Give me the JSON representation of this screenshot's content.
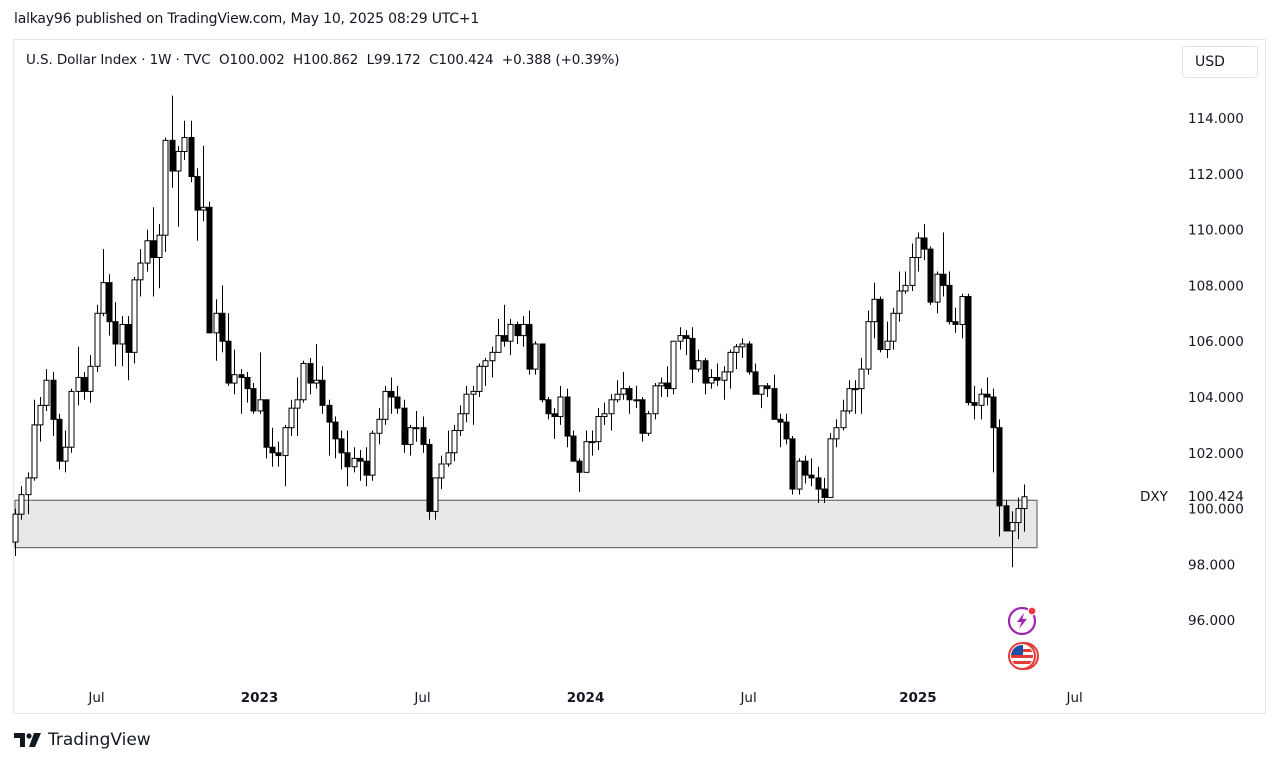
{
  "caption": "lalkay96 published on TradingView.com, May 10, 2025 08:29 UTC+1",
  "legend": {
    "symbol": "U.S. Dollar Index · 1W · TVC",
    "open": "O100.002",
    "high": "H100.862",
    "low": "L99.172",
    "close": "C100.424",
    "change": "+0.388 (+0.39%)"
  },
  "currency_button": "USD",
  "footer_brand": "TradingView",
  "icons": [
    "lightning-event-icon",
    "us-flag-icon",
    "tradingview-logo-icon"
  ],
  "colors": {
    "up_body": "#ffffff",
    "down_body": "#000000",
    "wick": "#000000",
    "zone_fill": "#e8e8ea",
    "zone_border": "#555555",
    "event_icon": "#9c27b0",
    "flag_icon": "#e53935"
  },
  "chart_data": {
    "type": "candlestick",
    "interval": "1W",
    "symbol_label": "DXY",
    "last_price_label": "100.424",
    "hidden_tick_label": "100.000",
    "ylim": [
      93.2,
      116.8
    ],
    "y_ticks": [
      "114.000",
      "112.000",
      "110.000",
      "108.000",
      "106.000",
      "104.000",
      "102.000",
      "98.000",
      "96.000"
    ],
    "x_ticks": [
      {
        "label": "Jul",
        "date": "2022-07-04",
        "bold": false
      },
      {
        "label": "2023",
        "date": "2023-01-02",
        "bold": true
      },
      {
        "label": "Jul",
        "date": "2023-07-03",
        "bold": false
      },
      {
        "label": "2024",
        "date": "2024-01-01",
        "bold": true
      },
      {
        "label": "Jul",
        "date": "2024-07-01",
        "bold": false
      },
      {
        "label": "2025",
        "date": "2025-01-06",
        "bold": true
      },
      {
        "label": "Jul",
        "date": "2025-06-30",
        "bold": false
      }
    ],
    "zone": {
      "top": 100.3,
      "bottom": 98.6,
      "from": "2022-04-04",
      "to": "2025-05-19"
    },
    "grid": false,
    "candles_columns": [
      "date",
      "open",
      "high",
      "low",
      "close"
    ],
    "candles": [
      [
        "2022-04-04",
        98.8,
        100.0,
        98.3,
        99.8
      ],
      [
        "2022-04-11",
        99.8,
        100.8,
        99.6,
        100.5
      ],
      [
        "2022-04-18",
        100.5,
        101.3,
        99.8,
        101.1
      ],
      [
        "2022-04-25",
        101.1,
        103.9,
        101.0,
        103.0
      ],
      [
        "2022-05-02",
        103.0,
        104.0,
        102.4,
        103.7
      ],
      [
        "2022-05-09",
        103.7,
        105.0,
        103.5,
        104.6
      ],
      [
        "2022-05-16",
        104.6,
        104.9,
        102.6,
        103.2
      ],
      [
        "2022-05-23",
        103.2,
        103.4,
        101.4,
        101.7
      ],
      [
        "2022-05-30",
        101.7,
        102.8,
        101.3,
        102.2
      ],
      [
        "2022-06-06",
        102.2,
        104.3,
        102.0,
        104.2
      ],
      [
        "2022-06-13",
        104.2,
        105.8,
        103.7,
        104.7
      ],
      [
        "2022-06-20",
        104.7,
        104.9,
        103.9,
        104.2
      ],
      [
        "2022-06-27",
        104.2,
        105.5,
        103.8,
        105.1
      ],
      [
        "2022-07-04",
        105.1,
        107.3,
        104.9,
        107.0
      ],
      [
        "2022-07-11",
        107.0,
        109.3,
        106.9,
        108.1
      ],
      [
        "2022-07-18",
        108.1,
        108.4,
        106.2,
        106.7
      ],
      [
        "2022-07-25",
        106.7,
        107.4,
        105.1,
        105.9
      ],
      [
        "2022-08-01",
        105.9,
        106.9,
        105.1,
        106.6
      ],
      [
        "2022-08-08",
        106.6,
        106.9,
        104.6,
        105.6
      ],
      [
        "2022-08-15",
        105.6,
        108.3,
        105.2,
        108.2
      ],
      [
        "2022-08-22",
        108.2,
        109.3,
        107.6,
        108.8
      ],
      [
        "2022-08-29",
        108.8,
        110.0,
        108.5,
        109.6
      ],
      [
        "2022-09-05",
        109.6,
        110.8,
        107.6,
        109.0
      ],
      [
        "2022-09-12",
        109.0,
        110.2,
        107.9,
        109.8
      ],
      [
        "2022-09-19",
        109.8,
        113.3,
        109.2,
        113.2
      ],
      [
        "2022-09-26",
        113.2,
        114.8,
        111.5,
        112.1
      ],
      [
        "2022-10-03",
        112.1,
        113.0,
        110.1,
        112.8
      ],
      [
        "2022-10-10",
        112.8,
        113.9,
        112.5,
        113.3
      ],
      [
        "2022-10-17",
        113.3,
        113.9,
        111.7,
        111.9
      ],
      [
        "2022-10-24",
        111.9,
        112.2,
        109.6,
        110.7
      ],
      [
        "2022-10-31",
        110.7,
        113.0,
        110.3,
        110.8
      ],
      [
        "2022-11-07",
        110.8,
        111.0,
        106.3,
        106.3
      ],
      [
        "2022-11-14",
        106.3,
        107.5,
        105.3,
        107.0
      ],
      [
        "2022-11-21",
        107.0,
        108.0,
        105.6,
        106.0
      ],
      [
        "2022-11-28",
        106.0,
        107.0,
        104.4,
        104.5
      ],
      [
        "2022-12-05",
        104.5,
        105.7,
        104.1,
        104.8
      ],
      [
        "2022-12-12",
        104.8,
        105.0,
        103.4,
        104.7
      ],
      [
        "2022-12-19",
        104.7,
        104.9,
        103.8,
        104.3
      ],
      [
        "2022-12-26",
        104.3,
        104.5,
        103.4,
        103.5
      ],
      [
        "2023-01-02",
        103.5,
        105.6,
        103.4,
        103.9
      ],
      [
        "2023-01-09",
        103.9,
        103.9,
        101.8,
        102.2
      ],
      [
        "2023-01-16",
        102.2,
        102.9,
        101.5,
        102.0
      ],
      [
        "2023-01-23",
        102.0,
        102.4,
        101.5,
        101.9
      ],
      [
        "2023-01-30",
        101.9,
        103.0,
        100.8,
        102.9
      ],
      [
        "2023-02-06",
        102.9,
        103.9,
        102.6,
        103.6
      ],
      [
        "2023-02-13",
        103.6,
        104.7,
        102.6,
        103.9
      ],
      [
        "2023-02-20",
        103.9,
        105.3,
        103.8,
        105.2
      ],
      [
        "2023-02-27",
        105.2,
        105.4,
        104.1,
        104.5
      ],
      [
        "2023-03-06",
        104.5,
        105.9,
        104.3,
        104.6
      ],
      [
        "2023-03-13",
        104.6,
        105.1,
        103.4,
        103.7
      ],
      [
        "2023-03-20",
        103.7,
        103.9,
        101.9,
        103.1
      ],
      [
        "2023-03-27",
        103.1,
        103.3,
        101.8,
        102.5
      ],
      [
        "2023-04-03",
        102.5,
        102.8,
        101.4,
        102.0
      ],
      [
        "2023-04-10",
        102.0,
        102.8,
        100.8,
        101.5
      ],
      [
        "2023-04-17",
        101.5,
        102.2,
        101.3,
        101.8
      ],
      [
        "2023-04-24",
        101.8,
        102.1,
        101.0,
        101.7
      ],
      [
        "2023-05-01",
        101.7,
        102.2,
        100.8,
        101.2
      ],
      [
        "2023-05-08",
        101.2,
        102.8,
        101.0,
        102.7
      ],
      [
        "2023-05-15",
        102.7,
        103.6,
        102.3,
        103.2
      ],
      [
        "2023-05-22",
        103.2,
        104.4,
        103.0,
        104.2
      ],
      [
        "2023-05-29",
        104.2,
        104.7,
        103.4,
        104.0
      ],
      [
        "2023-06-05",
        104.0,
        104.4,
        103.4,
        103.6
      ],
      [
        "2023-06-12",
        103.6,
        103.9,
        102.0,
        102.3
      ],
      [
        "2023-06-19",
        102.3,
        103.0,
        101.9,
        102.9
      ],
      [
        "2023-06-26",
        102.9,
        103.5,
        102.4,
        102.9
      ],
      [
        "2023-07-03",
        102.9,
        103.3,
        102.0,
        102.3
      ],
      [
        "2023-07-10",
        102.3,
        102.5,
        99.6,
        99.9
      ],
      [
        "2023-07-17",
        99.9,
        101.1,
        99.6,
        101.1
      ],
      [
        "2023-07-24",
        101.1,
        101.9,
        100.7,
        101.6
      ],
      [
        "2023-07-31",
        101.6,
        102.8,
        101.5,
        102.0
      ],
      [
        "2023-08-07",
        102.0,
        103.0,
        101.7,
        102.8
      ],
      [
        "2023-08-14",
        102.8,
        103.7,
        102.6,
        103.4
      ],
      [
        "2023-08-21",
        103.4,
        104.4,
        103.1,
        104.1
      ],
      [
        "2023-08-28",
        104.1,
        104.4,
        103.0,
        104.2
      ],
      [
        "2023-09-04",
        104.2,
        105.2,
        104.0,
        105.1
      ],
      [
        "2023-09-11",
        105.1,
        105.4,
        104.4,
        105.3
      ],
      [
        "2023-09-18",
        105.3,
        105.8,
        104.7,
        105.6
      ],
      [
        "2023-09-25",
        105.6,
        106.8,
        105.6,
        106.2
      ],
      [
        "2023-10-02",
        106.2,
        107.3,
        105.8,
        106.0
      ],
      [
        "2023-10-09",
        106.0,
        106.8,
        105.5,
        106.6
      ],
      [
        "2023-10-16",
        106.6,
        106.7,
        105.9,
        106.2
      ],
      [
        "2023-10-23",
        106.2,
        106.9,
        105.8,
        106.6
      ],
      [
        "2023-10-30",
        106.6,
        107.1,
        104.8,
        105.0
      ],
      [
        "2023-11-06",
        105.0,
        106.0,
        104.8,
        105.9
      ],
      [
        "2023-11-13",
        105.9,
        105.9,
        103.8,
        103.9
      ],
      [
        "2023-11-20",
        103.9,
        104.0,
        103.2,
        103.4
      ],
      [
        "2023-11-27",
        103.4,
        103.6,
        102.5,
        103.3
      ],
      [
        "2023-12-04",
        103.3,
        104.4,
        103.0,
        104.0
      ],
      [
        "2023-12-11",
        104.0,
        104.3,
        102.2,
        102.6
      ],
      [
        "2023-12-18",
        102.6,
        102.8,
        101.7,
        101.7
      ],
      [
        "2023-12-25",
        101.7,
        101.8,
        100.6,
        101.3
      ],
      [
        "2024-01-01",
        101.3,
        102.8,
        101.3,
        102.4
      ],
      [
        "2024-01-08",
        102.4,
        102.8,
        101.9,
        102.4
      ],
      [
        "2024-01-15",
        102.4,
        103.6,
        102.1,
        103.3
      ],
      [
        "2024-01-22",
        103.3,
        103.8,
        103.0,
        103.4
      ],
      [
        "2024-01-29",
        103.4,
        104.1,
        102.8,
        103.9
      ],
      [
        "2024-02-05",
        103.9,
        104.6,
        103.8,
        104.1
      ],
      [
        "2024-02-12",
        104.1,
        104.9,
        103.9,
        104.3
      ],
      [
        "2024-02-19",
        104.3,
        104.4,
        103.4,
        103.9
      ],
      [
        "2024-02-26",
        103.9,
        104.4,
        103.6,
        103.9
      ],
      [
        "2024-03-04",
        103.9,
        104.0,
        102.4,
        102.7
      ],
      [
        "2024-03-11",
        102.7,
        103.5,
        102.6,
        103.4
      ],
      [
        "2024-03-18",
        103.4,
        104.5,
        103.2,
        104.4
      ],
      [
        "2024-03-25",
        104.4,
        104.7,
        104.0,
        104.5
      ],
      [
        "2024-04-01",
        104.5,
        105.1,
        104.0,
        104.3
      ],
      [
        "2024-04-08",
        104.3,
        106.0,
        104.1,
        106.0
      ],
      [
        "2024-04-15",
        106.0,
        106.5,
        105.7,
        106.2
      ],
      [
        "2024-04-22",
        106.2,
        106.4,
        105.5,
        106.1
      ],
      [
        "2024-04-29",
        106.1,
        106.5,
        104.5,
        105.0
      ],
      [
        "2024-05-06",
        105.0,
        105.7,
        104.9,
        105.3
      ],
      [
        "2024-05-13",
        105.3,
        105.4,
        104.1,
        104.5
      ],
      [
        "2024-05-20",
        104.5,
        105.0,
        104.3,
        104.7
      ],
      [
        "2024-05-27",
        104.7,
        105.2,
        104.4,
        104.6
      ],
      [
        "2024-06-03",
        104.6,
        105.1,
        103.9,
        104.9
      ],
      [
        "2024-06-10",
        104.9,
        105.7,
        104.3,
        105.6
      ],
      [
        "2024-06-17",
        105.6,
        105.9,
        105.0,
        105.8
      ],
      [
        "2024-06-24",
        105.8,
        106.1,
        105.4,
        105.9
      ],
      [
        "2024-07-01",
        105.9,
        106.0,
        104.8,
        104.9
      ],
      [
        "2024-07-08",
        104.9,
        105.2,
        104.1,
        104.1
      ],
      [
        "2024-07-15",
        104.1,
        104.4,
        103.6,
        104.4
      ],
      [
        "2024-07-22",
        104.4,
        104.5,
        104.0,
        104.3
      ],
      [
        "2024-07-29",
        104.3,
        104.8,
        103.2,
        103.2
      ],
      [
        "2024-08-05",
        103.2,
        103.4,
        102.2,
        103.1
      ],
      [
        "2024-08-12",
        103.1,
        103.4,
        102.3,
        102.5
      ],
      [
        "2024-08-19",
        102.5,
        102.6,
        100.5,
        100.7
      ],
      [
        "2024-08-26",
        100.7,
        101.8,
        100.5,
        101.7
      ],
      [
        "2024-09-02",
        101.7,
        101.9,
        100.9,
        101.2
      ],
      [
        "2024-09-09",
        101.2,
        101.8,
        100.8,
        101.1
      ],
      [
        "2024-09-16",
        101.1,
        101.5,
        100.2,
        100.7
      ],
      [
        "2024-09-23",
        100.7,
        101.1,
        100.2,
        100.4
      ],
      [
        "2024-09-30",
        100.4,
        102.7,
        100.4,
        102.5
      ],
      [
        "2024-10-07",
        102.5,
        103.2,
        102.2,
        102.9
      ],
      [
        "2024-10-14",
        102.9,
        103.9,
        102.8,
        103.5
      ],
      [
        "2024-10-21",
        103.5,
        104.6,
        103.4,
        104.3
      ],
      [
        "2024-10-28",
        104.3,
        104.6,
        103.4,
        104.3
      ],
      [
        "2024-11-04",
        104.3,
        105.4,
        103.4,
        105.0
      ],
      [
        "2024-11-11",
        105.0,
        107.1,
        104.8,
        106.7
      ],
      [
        "2024-11-18",
        106.7,
        108.1,
        106.1,
        107.5
      ],
      [
        "2024-11-25",
        107.5,
        107.6,
        105.6,
        105.7
      ],
      [
        "2024-12-02",
        105.7,
        106.7,
        105.4,
        106.0
      ],
      [
        "2024-12-09",
        106.0,
        107.2,
        105.7,
        107.0
      ],
      [
        "2024-12-16",
        107.0,
        108.5,
        106.7,
        107.8
      ],
      [
        "2024-12-23",
        107.8,
        108.5,
        107.7,
        108.0
      ],
      [
        "2024-12-30",
        108.0,
        109.5,
        107.8,
        109.0
      ],
      [
        "2025-01-06",
        109.0,
        109.9,
        108.5,
        109.7
      ],
      [
        "2025-01-13",
        109.7,
        110.2,
        108.9,
        109.3
      ],
      [
        "2025-01-20",
        109.3,
        109.4,
        107.3,
        107.4
      ],
      [
        "2025-01-27",
        107.4,
        108.5,
        107.0,
        108.4
      ],
      [
        "2025-02-03",
        108.4,
        109.9,
        107.6,
        108.0
      ],
      [
        "2025-02-10",
        108.0,
        108.5,
        106.6,
        106.7
      ],
      [
        "2025-02-17",
        106.7,
        107.2,
        106.3,
        106.6
      ],
      [
        "2025-02-24",
        106.6,
        107.7,
        106.1,
        107.6
      ],
      [
        "2025-03-03",
        107.6,
        107.7,
        103.7,
        103.8
      ],
      [
        "2025-03-10",
        103.8,
        104.4,
        103.2,
        103.7
      ],
      [
        "2025-03-17",
        103.7,
        104.3,
        103.2,
        104.1
      ],
      [
        "2025-03-24",
        104.1,
        104.7,
        103.7,
        104.0
      ],
      [
        "2025-03-31",
        104.0,
        104.3,
        101.3,
        102.9
      ],
      [
        "2025-04-07",
        102.9,
        103.2,
        99.0,
        100.1
      ],
      [
        "2025-04-14",
        100.1,
        100.3,
        99.2,
        99.2
      ],
      [
        "2025-04-21",
        99.2,
        99.9,
        97.9,
        99.5
      ],
      [
        "2025-04-28",
        99.5,
        100.4,
        98.9,
        100.0
      ],
      [
        "2025-05-05",
        100.002,
        100.862,
        99.172,
        100.424
      ]
    ]
  }
}
